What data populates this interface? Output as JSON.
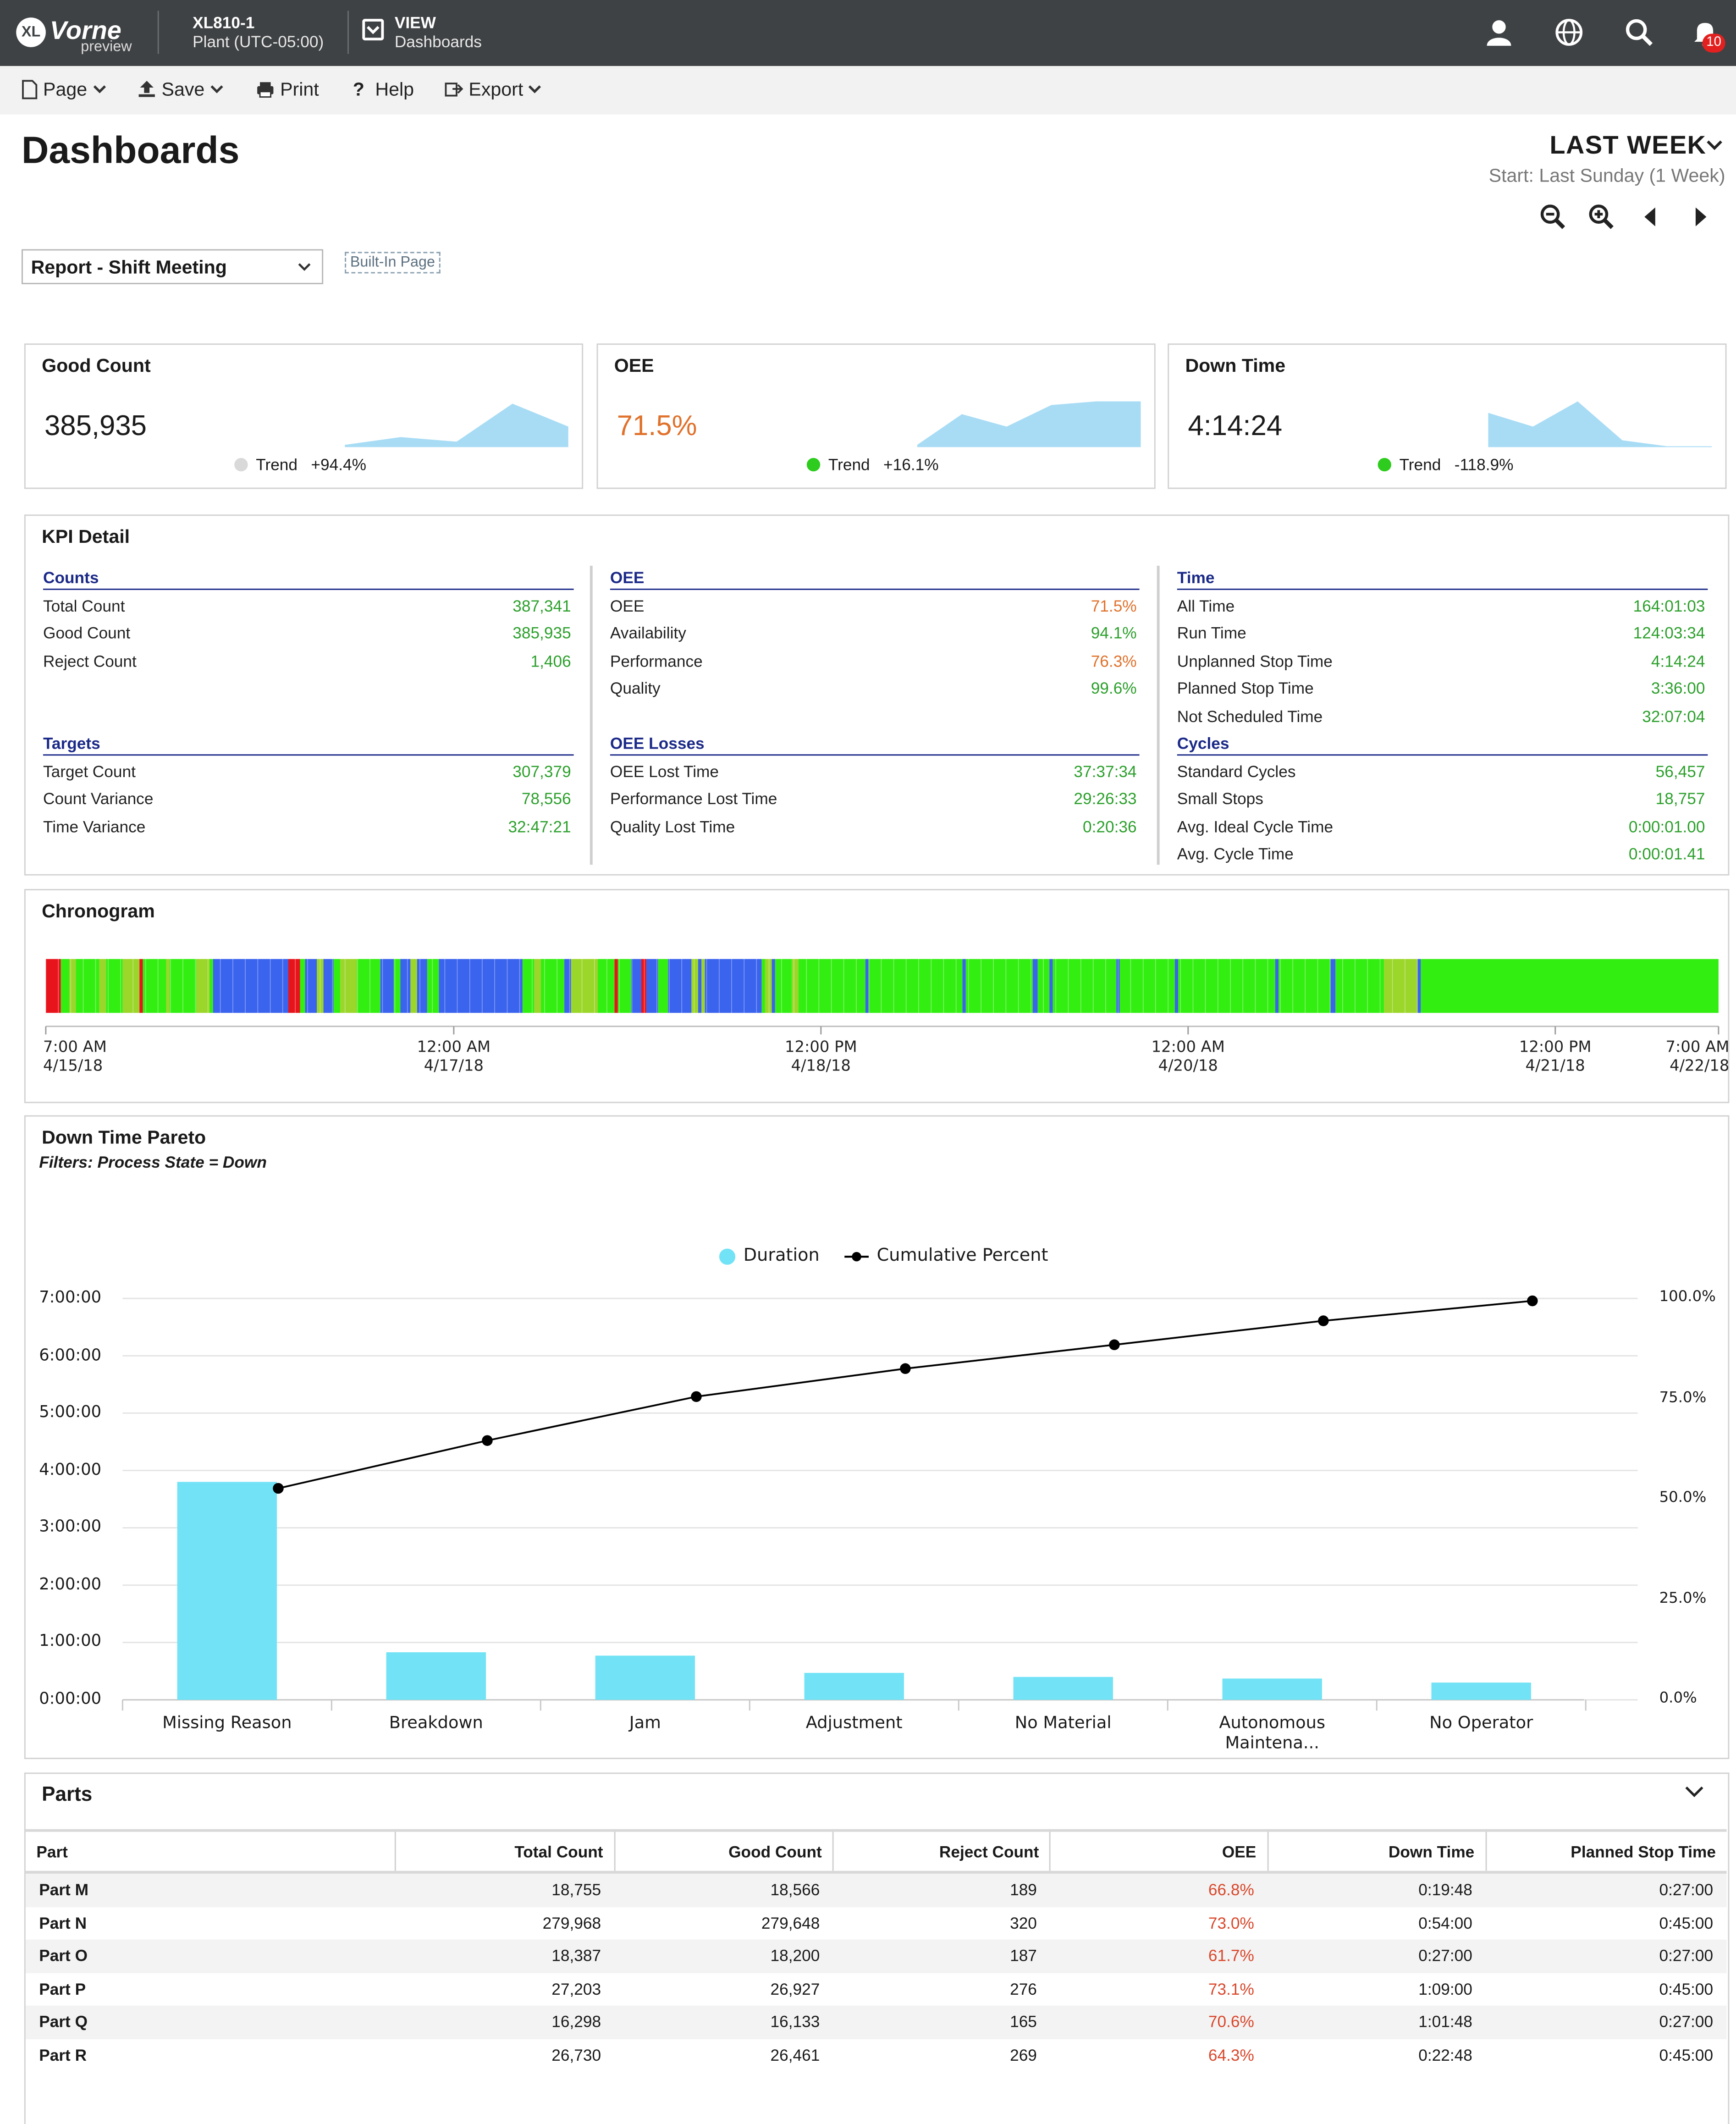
{
  "header": {
    "logo_text": "Vorne",
    "logo_badge": "XL",
    "logo_sub": "preview",
    "device": "XL810-1",
    "device_sub": "Plant (UTC-05:00)",
    "view_label": "VIEW",
    "view_sub": "Dashboards",
    "notification_count": "10"
  },
  "menu": {
    "page": "Page",
    "save": "Save",
    "print": "Print",
    "help": "Help",
    "export": "Export"
  },
  "page": {
    "title": "Dashboards",
    "period": "LAST WEEK",
    "period_start": "Start: Last Sunday (1 Week)",
    "report_select": "Report - Shift Meeting",
    "builtin_badge": "Built-In Page"
  },
  "kpi_cards": [
    {
      "title": "Good Count",
      "value": "385,935",
      "trend_label": "Trend",
      "trend_value": "+94.4%",
      "dot_color": "#d9d9d9",
      "value_color": "#1a1a1a",
      "spark": [
        0.05,
        0.22,
        0.12,
        0.95,
        0.45
      ]
    },
    {
      "title": "OEE",
      "value": "71.5%",
      "trend_label": "Trend",
      "trend_value": "+16.1%",
      "dot_color": "#2ecc1e",
      "value_color": "#e0712b",
      "spark": [
        0.05,
        0.72,
        0.45,
        0.92,
        1.0,
        1.0
      ]
    },
    {
      "title": "Down Time",
      "value": "4:14:24",
      "trend_label": "Trend",
      "trend_value": "-118.9%",
      "dot_color": "#2ecc1e",
      "value_color": "#1a1a1a",
      "spark": [
        0.75,
        0.45,
        1.0,
        0.15,
        0.02,
        0.02
      ]
    }
  ],
  "kpi_detail": {
    "title": "KPI Detail",
    "sections": [
      {
        "heading": "Counts",
        "rows": [
          {
            "label": "Total Count",
            "value": "387,341",
            "color": "green"
          },
          {
            "label": "Good Count",
            "value": "385,935",
            "color": "green"
          },
          {
            "label": "Reject Count",
            "value": "1,406",
            "color": "green"
          }
        ]
      },
      {
        "heading": "Targets",
        "rows": [
          {
            "label": "Target Count",
            "value": "307,379",
            "color": "green"
          },
          {
            "label": "Count Variance",
            "value": "78,556",
            "color": "green"
          },
          {
            "label": "Time Variance",
            "value": "32:47:21",
            "color": "green"
          }
        ]
      },
      {
        "heading": "OEE",
        "rows": [
          {
            "label": "OEE",
            "value": "71.5%",
            "color": "red"
          },
          {
            "label": "Availability",
            "value": "94.1%",
            "color": "green"
          },
          {
            "label": "Performance",
            "value": "76.3%",
            "color": "red"
          },
          {
            "label": "Quality",
            "value": "99.6%",
            "color": "green"
          }
        ]
      },
      {
        "heading": "OEE Losses",
        "rows": [
          {
            "label": "OEE Lost Time",
            "value": "37:37:34",
            "color": "green"
          },
          {
            "label": "Performance Lost Time",
            "value": "29:26:33",
            "color": "green"
          },
          {
            "label": "Quality Lost Time",
            "value": "0:20:36",
            "color": "green"
          }
        ]
      },
      {
        "heading": "Time",
        "rows": [
          {
            "label": "All Time",
            "value": "164:01:03",
            "color": "green"
          },
          {
            "label": "Run Time",
            "value": "124:03:34",
            "color": "green"
          },
          {
            "label": "Unplanned Stop Time",
            "value": "4:14:24",
            "color": "green"
          },
          {
            "label": "Planned Stop Time",
            "value": "3:36:00",
            "color": "green"
          },
          {
            "label": "Not Scheduled Time",
            "value": "32:07:04",
            "color": "green"
          }
        ]
      },
      {
        "heading": "Cycles",
        "rows": [
          {
            "label": "Standard Cycles",
            "value": "56,457",
            "color": "green"
          },
          {
            "label": "Small Stops",
            "value": "18,757",
            "color": "green"
          },
          {
            "label": "Avg. Ideal Cycle Time",
            "value": "0:00:01.00",
            "color": "green"
          },
          {
            "label": "Avg. Cycle Time",
            "value": "0:00:01.41",
            "color": "green"
          }
        ]
      }
    ]
  },
  "chronogram": {
    "title": "Chronogram",
    "ticks": [
      {
        "time": "7:00 AM",
        "date": "4/15/18",
        "frac": 0.0
      },
      {
        "time": "12:00 AM",
        "date": "4/17/18",
        "frac": 0.2439
      },
      {
        "time": "12:00 PM",
        "date": "4/18/18",
        "frac": 0.4634
      },
      {
        "time": "12:00 AM",
        "date": "4/20/18",
        "frac": 0.6829
      },
      {
        "time": "12:00 PM",
        "date": "4/21/18",
        "frac": 0.9024
      },
      {
        "time": "7:00 AM",
        "date": "4/22/18",
        "frac": 1.0
      }
    ],
    "colors": {
      "run": "#33ee11",
      "down": "#e8141c",
      "planned": "#3a63ee",
      "small": "#9bd62a"
    },
    "segments": [
      [
        "down",
        0.0,
        0.009
      ],
      [
        "run",
        0.009,
        0.014
      ],
      [
        "small",
        0.014,
        0.018
      ],
      [
        "run",
        0.018,
        0.032
      ],
      [
        "small",
        0.032,
        0.036
      ],
      [
        "run",
        0.036,
        0.046
      ],
      [
        "small",
        0.046,
        0.056
      ],
      [
        "down",
        0.056,
        0.058
      ],
      [
        "run",
        0.058,
        0.072
      ],
      [
        "small",
        0.072,
        0.074
      ],
      [
        "run",
        0.074,
        0.09
      ],
      [
        "small",
        0.09,
        0.098
      ],
      [
        "run",
        0.098,
        0.1
      ],
      [
        "planned",
        0.1,
        0.145
      ],
      [
        "down",
        0.145,
        0.152
      ],
      [
        "run",
        0.152,
        0.155
      ],
      [
        "planned",
        0.155,
        0.162
      ],
      [
        "small",
        0.162,
        0.166
      ],
      [
        "planned",
        0.166,
        0.172
      ],
      [
        "run",
        0.172,
        0.176
      ],
      [
        "small",
        0.176,
        0.186
      ],
      [
        "run",
        0.186,
        0.2
      ],
      [
        "planned",
        0.2,
        0.208
      ],
      [
        "run",
        0.208,
        0.212
      ],
      [
        "planned",
        0.212,
        0.218
      ],
      [
        "small",
        0.218,
        0.222
      ],
      [
        "planned",
        0.222,
        0.228
      ],
      [
        "run",
        0.228,
        0.235
      ],
      [
        "planned",
        0.235,
        0.285
      ],
      [
        "run",
        0.285,
        0.292
      ],
      [
        "small",
        0.292,
        0.296
      ],
      [
        "run",
        0.296,
        0.31
      ],
      [
        "planned",
        0.31,
        0.314
      ],
      [
        "small",
        0.314,
        0.33
      ],
      [
        "run",
        0.33,
        0.34
      ],
      [
        "down",
        0.34,
        0.342
      ],
      [
        "run",
        0.342,
        0.35
      ],
      [
        "planned",
        0.35,
        0.356
      ],
      [
        "down",
        0.356,
        0.359
      ],
      [
        "planned",
        0.359,
        0.366
      ],
      [
        "run",
        0.366,
        0.372
      ],
      [
        "planned",
        0.372,
        0.386
      ],
      [
        "small",
        0.386,
        0.39
      ],
      [
        "planned",
        0.39,
        0.392
      ],
      [
        "small",
        0.392,
        0.394
      ],
      [
        "planned",
        0.394,
        0.428
      ],
      [
        "run",
        0.428,
        0.43
      ],
      [
        "small",
        0.43,
        0.434
      ],
      [
        "planned",
        0.434,
        0.436
      ],
      [
        "run",
        0.436,
        0.446
      ],
      [
        "small",
        0.446,
        0.45
      ],
      [
        "run",
        0.45,
        0.49
      ],
      [
        "planned",
        0.49,
        0.492
      ],
      [
        "run",
        0.492,
        0.548
      ],
      [
        "planned",
        0.548,
        0.55
      ],
      [
        "run",
        0.55,
        0.59
      ],
      [
        "planned",
        0.59,
        0.593
      ],
      [
        "run",
        0.593,
        0.6
      ],
      [
        "planned",
        0.6,
        0.602
      ],
      [
        "run",
        0.602,
        0.64
      ],
      [
        "planned",
        0.64,
        0.642
      ],
      [
        "run",
        0.642,
        0.675
      ],
      [
        "planned",
        0.675,
        0.677
      ],
      [
        "run",
        0.677,
        0.735
      ],
      [
        "planned",
        0.735,
        0.737
      ],
      [
        "run",
        0.737,
        0.768
      ],
      [
        "planned",
        0.768,
        0.771
      ],
      [
        "run",
        0.771,
        0.8
      ],
      [
        "small",
        0.8,
        0.82
      ],
      [
        "planned",
        0.82,
        0.822
      ],
      [
        "run",
        0.822,
        1.0
      ]
    ]
  },
  "pareto": {
    "title": "Down Time Pareto",
    "filter": "Filters:  Process State = Down",
    "legend": {
      "duration": "Duration",
      "cumulative": "Cumulative Percent"
    },
    "y_left_ticks": [
      "0:00:00",
      "1:00:00",
      "2:00:00",
      "3:00:00",
      "4:00:00",
      "5:00:00",
      "6:00:00",
      "7:00:00"
    ],
    "y_right_ticks": [
      "0.0%",
      "25.0%",
      "50.0%",
      "75.0%",
      "100.0%"
    ]
  },
  "chart_data": {
    "type": "bar",
    "title": "Down Time Pareto",
    "categories": [
      "Missing Reason",
      "Breakdown",
      "Jam",
      "Adjustment",
      "No Material",
      "Autonomous Maintena...",
      "No Operator"
    ],
    "series": [
      {
        "name": "Duration",
        "values_hours": [
          3.8,
          0.83,
          0.77,
          0.47,
          0.4,
          0.37,
          0.3
        ]
      },
      {
        "name": "Cumulative Percent",
        "values_percent": [
          53.0,
          65.0,
          76.0,
          83.0,
          89.0,
          95.0,
          100.0
        ]
      }
    ],
    "y_left_range_hours": [
      0,
      7
    ],
    "y_right_range_percent": [
      0,
      100
    ],
    "colors": {
      "bar": "#72e3f6",
      "line": "#000000"
    }
  },
  "parts": {
    "title": "Parts",
    "columns": [
      "Part",
      "Total Count",
      "Good Count",
      "Reject Count",
      "OEE",
      "Down Time",
      "Planned Stop Time"
    ],
    "rows": [
      [
        "Part M",
        "18,755",
        "18,566",
        "189",
        "66.8%",
        "0:19:48",
        "0:27:00"
      ],
      [
        "Part N",
        "279,968",
        "279,648",
        "320",
        "73.0%",
        "0:54:00",
        "0:45:00"
      ],
      [
        "Part O",
        "18,387",
        "18,200",
        "187",
        "61.7%",
        "0:27:00",
        "0:27:00"
      ],
      [
        "Part P",
        "27,203",
        "26,927",
        "276",
        "73.1%",
        "1:09:00",
        "0:45:00"
      ],
      [
        "Part Q",
        "16,298",
        "16,133",
        "165",
        "70.6%",
        "1:01:48",
        "0:27:00"
      ],
      [
        "Part R",
        "26,730",
        "26,461",
        "269",
        "64.3%",
        "0:22:48",
        "0:45:00"
      ]
    ]
  }
}
